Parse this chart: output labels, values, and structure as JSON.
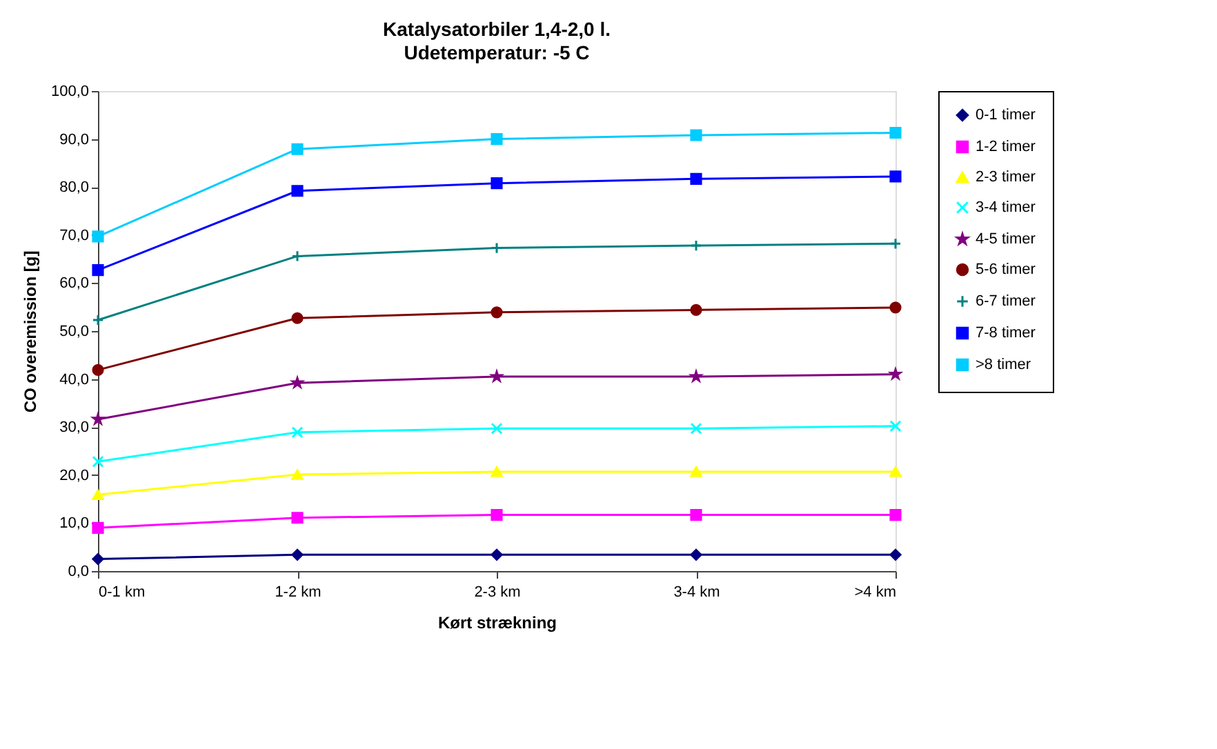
{
  "chart_data": {
    "type": "line",
    "title": "Katalysatorbiler 1,4-2,0 l.",
    "subtitle": "Udetemperatur: -5 C",
    "xlabel": "Kørt strækning",
    "ylabel": "CO overemission [g]",
    "categories": [
      "0-1 km",
      "1-2 km",
      "2-3 km",
      "3-4 km",
      ">4 km"
    ],
    "ylim": [
      0,
      100
    ],
    "yticks": [
      {
        "value": 0,
        "label": "0,0"
      },
      {
        "value": 10,
        "label": "10,0"
      },
      {
        "value": 20,
        "label": "20,0"
      },
      {
        "value": 30,
        "label": "30,0"
      },
      {
        "value": 40,
        "label": "40,0"
      },
      {
        "value": 50,
        "label": "50,0"
      },
      {
        "value": 60,
        "label": "60,0"
      },
      {
        "value": 70,
        "label": "70,0"
      },
      {
        "value": 80,
        "label": "80,0"
      },
      {
        "value": 90,
        "label": "90,0"
      },
      {
        "value": 100,
        "label": "100,0"
      }
    ],
    "grid": false,
    "legend": "right",
    "line_style": "solid",
    "series": [
      {
        "name": "0-1 timer",
        "color": "#000080",
        "marker": "diamond",
        "values": [
          2.5,
          3.4,
          3.4,
          3.4,
          3.4
        ]
      },
      {
        "name": "1-2 timer",
        "color": "#ff00ff",
        "marker": "square",
        "values": [
          9.0,
          11.1,
          11.7,
          11.7,
          11.7
        ]
      },
      {
        "name": "2-3 timer",
        "color": "#ffff00",
        "marker": "triangle",
        "values": [
          15.9,
          20.1,
          20.7,
          20.7,
          20.7
        ]
      },
      {
        "name": "3-4 timer",
        "color": "#00ffff",
        "marker": "cross",
        "values": [
          22.8,
          28.9,
          29.7,
          29.7,
          30.2
        ]
      },
      {
        "name": "4-5 timer",
        "color": "#800080",
        "marker": "star",
        "values": [
          31.6,
          39.2,
          40.5,
          40.5,
          41.0
        ]
      },
      {
        "name": "5-6 timer",
        "color": "#800000",
        "marker": "circle",
        "values": [
          41.9,
          52.7,
          53.9,
          54.4,
          54.9
        ]
      },
      {
        "name": "6-7 timer",
        "color": "#008080",
        "marker": "plus",
        "values": [
          52.3,
          65.6,
          67.3,
          67.8,
          68.2
        ]
      },
      {
        "name": "7-8 timer",
        "color": "#0000ff",
        "marker": "square",
        "values": [
          62.7,
          79.2,
          80.8,
          81.7,
          82.2
        ]
      },
      {
        "name": ">8 timer",
        "color": "#00ccff",
        "marker": "square",
        "values": [
          69.7,
          87.9,
          90.0,
          90.8,
          91.3
        ]
      }
    ]
  }
}
